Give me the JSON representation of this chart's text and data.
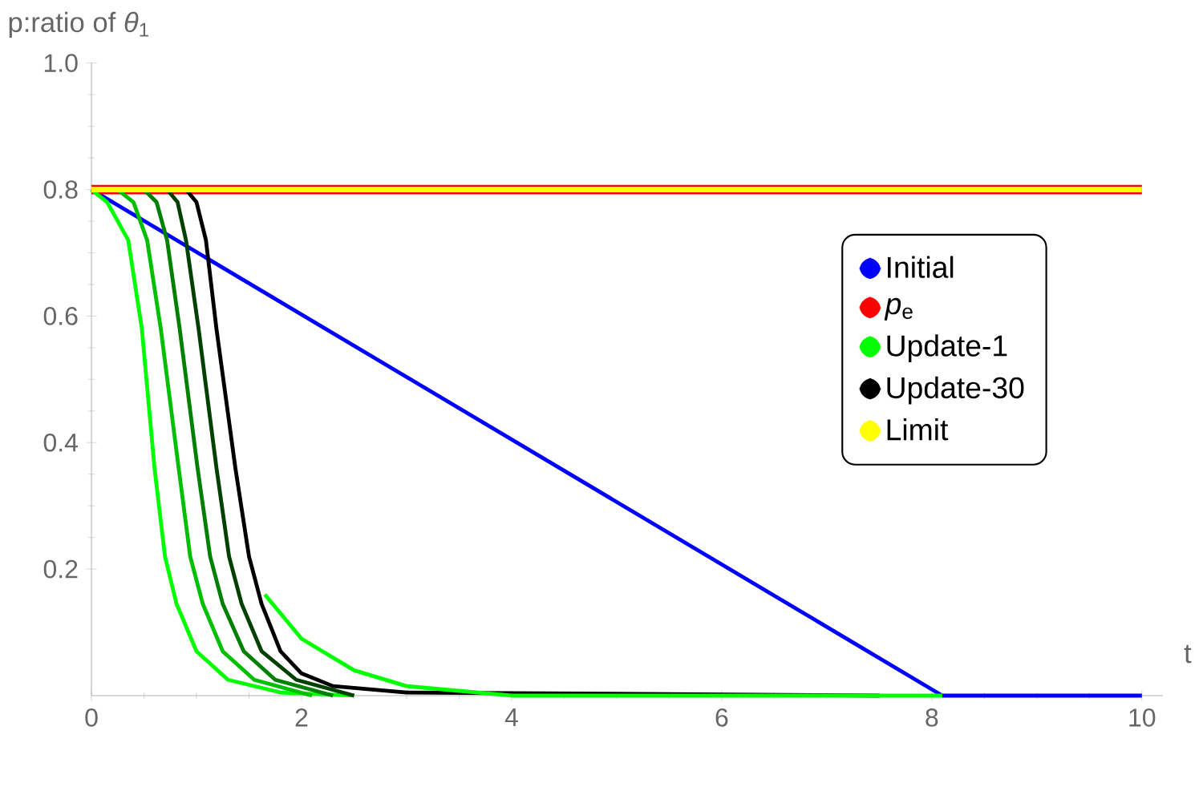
{
  "chart_data": {
    "type": "line",
    "xlabel": "t",
    "ylabel": "p:ratio of *θ*$_{1}$",
    "xlim": [
      0,
      10.2
    ],
    "ylim": [
      0,
      1.0
    ],
    "xticks": [
      0,
      2,
      4,
      6,
      8,
      10
    ],
    "yticks": [
      0.2,
      0.4,
      0.6,
      0.8,
      {
        "value": 1.0,
        "label": "1.0"
      }
    ],
    "legend": "right",
    "series": [
      {
        "name": "Initial",
        "color": "#0000ff",
        "x": [
          0,
          8.1,
          10
        ],
        "values": [
          0.8,
          0,
          0
        ]
      },
      {
        "name": "*p*$_{e}$",
        "color": "#ff0000",
        "x": [
          0,
          10
        ],
        "values": [
          0.8,
          0.8
        ]
      },
      {
        "name": "Update-1",
        "color": "#00ff00",
        "x": [
          0,
          0.15,
          0.35,
          0.48,
          0.6,
          0.7,
          0.81,
          1.0,
          1.3,
          1.8,
          2.5
        ],
        "values": [
          0.8,
          0.78,
          0.72,
          0.58,
          0.36,
          0.22,
          0.145,
          0.07,
          0.025,
          0.005,
          0
        ]
      },
      {
        "color": "#00bf00",
        "x": [
          0,
          0.25,
          0.4,
          0.53,
          0.66,
          0.83,
          0.94,
          1.06,
          1.25,
          1.55,
          2.1
        ],
        "values": [
          0.8,
          0.8,
          0.78,
          0.72,
          0.58,
          0.36,
          0.22,
          0.145,
          0.07,
          0.025,
          0
        ]
      },
      {
        "color": "#008000",
        "x": [
          0,
          0.5,
          0.62,
          0.72,
          0.84,
          1.01,
          1.13,
          1.25,
          1.45,
          1.75,
          2.3
        ],
        "values": [
          0.8,
          0.8,
          0.78,
          0.72,
          0.58,
          0.36,
          0.22,
          0.145,
          0.07,
          0.025,
          0
        ]
      },
      {
        "color": "#004000",
        "x": [
          0,
          0.72,
          0.82,
          0.9,
          1.02,
          1.19,
          1.31,
          1.43,
          1.62,
          1.95,
          2.5
        ],
        "values": [
          0.8,
          0.8,
          0.78,
          0.72,
          0.58,
          0.36,
          0.22,
          0.145,
          0.07,
          0.025,
          0
        ]
      },
      {
        "name": "Update-30",
        "color": "#000000",
        "x": [
          0,
          0.9,
          1.0,
          1.09,
          1.19,
          1.37,
          1.5,
          1.62,
          1.8,
          2.0,
          2.3,
          3,
          7.5
        ],
        "values": [
          0.8,
          0.8,
          0.78,
          0.72,
          0.58,
          0.36,
          0.22,
          0.145,
          0.07,
          0.035,
          0.015,
          0.005,
          0
        ]
      },
      {
        "color": "#00ff00",
        "x": [
          1.65,
          2.0,
          2.5,
          3,
          4,
          5,
          8.1
        ],
        "values": [
          0.16,
          0.09,
          0.04,
          0.015,
          0,
          0,
          0
        ]
      },
      {
        "name": "Limit",
        "color": "#ffff00",
        "x": [
          0,
          10
        ],
        "values": [
          0.8,
          0.8
        ]
      }
    ]
  }
}
